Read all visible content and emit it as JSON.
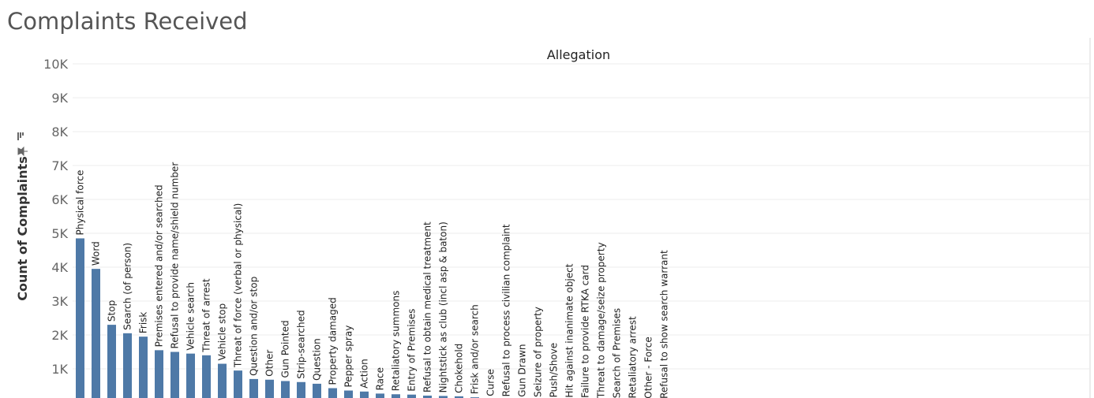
{
  "page": {
    "title": "Complaints Received"
  },
  "chart_data": {
    "type": "bar",
    "column_header": "Allegation",
    "ylabel": "Count of Complaints",
    "y_ticks": [
      1000,
      2000,
      3000,
      4000,
      5000,
      6000,
      7000,
      8000,
      9000,
      10000
    ],
    "y_tick_labels": [
      "1K",
      "2K",
      "3K",
      "4K",
      "5K",
      "6K",
      "7K",
      "8K",
      "9K",
      "10K"
    ],
    "ylim": [
      0,
      10000
    ],
    "sort_icon": "sort-descending-icon",
    "pin_icon": "pin-icon",
    "bar_color": "#4e79a7",
    "categories": [
      "Physical force",
      "Word",
      "Stop",
      "Search (of person)",
      "Frisk",
      "Premises entered and/or searched",
      "Refusal to provide name/shield number",
      "Vehicle search",
      "Threat of arrest",
      "Vehicle stop",
      "Threat of force (verbal or physical)",
      "Question and/or stop",
      "Other",
      "Gun Pointed",
      "Strip-searched",
      "Question",
      "Property damaged",
      "Pepper spray",
      "Action",
      "Race",
      "Retaliatory summons",
      "Entry of Premises",
      "Refusal to obtain medical treatment",
      "Nightstick as club (incl asp & baton)",
      "Chokehold",
      "Frisk and/or search",
      "Curse",
      "Refusal to process civilian complaint",
      "Gun Drawn",
      "Seizure of property",
      "Push/Shove",
      "Hit against inanimate object",
      "Failure to provide RTKA card",
      "Threat to damage/seize property",
      "Search of Premises",
      "Retaliatory arrest",
      "Other - Force",
      "Refusal to show search warrant"
    ],
    "values": [
      4850,
      3950,
      2300,
      2050,
      1950,
      1550,
      1500,
      1450,
      1400,
      1150,
      950,
      700,
      680,
      640,
      610,
      560,
      430,
      360,
      330,
      270,
      250,
      240,
      210,
      200,
      190,
      160,
      100,
      85,
      75,
      70,
      60,
      55,
      50,
      45,
      40,
      35,
      30,
      25
    ]
  }
}
